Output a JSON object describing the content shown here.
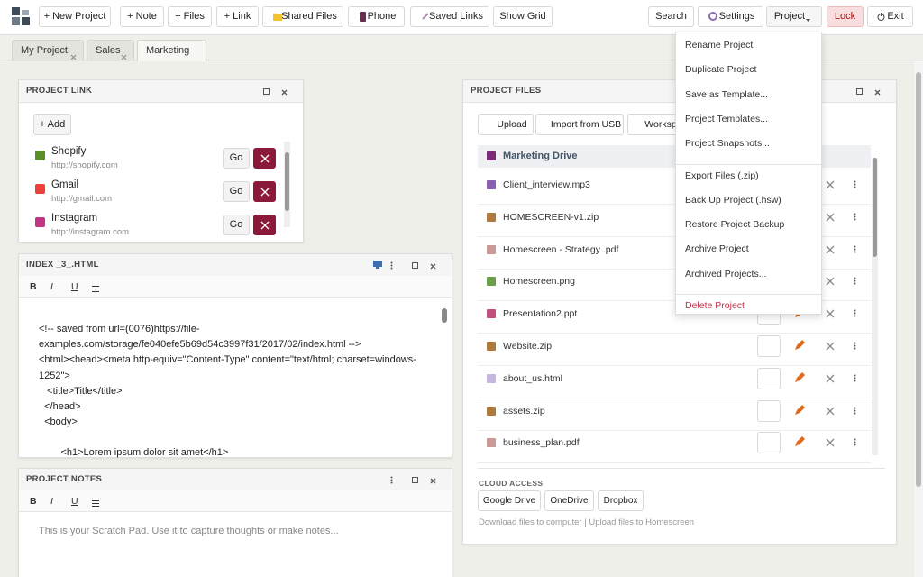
{
  "toolbar": {
    "left": [
      "+ New Project",
      "+ Note",
      "+ Files",
      "+ Link",
      "Shared Files",
      "Phone",
      "Saved Links",
      "Show Grid"
    ],
    "right": [
      "Search",
      "Settings",
      "Project",
      "Lock",
      "Exit"
    ]
  },
  "tabs": [
    "My Project",
    "Sales",
    "Marketing"
  ],
  "project_link": {
    "title": "PROJECT LINK",
    "add": "+ Add",
    "go": "Go",
    "links": [
      {
        "name": "Shopify",
        "url": "http://shopify.com"
      },
      {
        "name": "Gmail",
        "url": "http://gmail.com"
      },
      {
        "name": "Instagram",
        "url": "http://instagram.com"
      }
    ]
  },
  "editor_toolbar": [
    "B",
    "I",
    "U"
  ],
  "index_html": {
    "title": "INDEX _3_.HTML",
    "lines": [
      "<!-- saved from url=(0076)https://file-",
      "examples.com/storage/fe040efe5b69d54c3997f31/2017/02/index.html -->",
      "<html><head><meta http-equiv=\"Content-Type\" content=\"text/html; charset=windows-",
      "1252\">",
      "   <title>Title</title>",
      "  </head>",
      "  <body>",
      "        <h1>Lorem ipsum dolor sit amet</h1>"
    ]
  },
  "project_notes": {
    "title": "PROJECT NOTES",
    "placeholder": "This is your Scratch Pad. Use it to capture thoughts or make notes..."
  },
  "project_files": {
    "title": "PROJECT FILES",
    "buttons": [
      "Upload",
      "Import from USB",
      "Worksp"
    ],
    "drive": "Marketing Drive",
    "files": [
      "Client_interview.mp3",
      "HOMESCREEN-v1.zip",
      "Homescreen - Strategy .pdf",
      "Homescreen.png",
      "Presentation2.ppt",
      "Website.zip",
      "about_us.html",
      "assets.zip",
      "business_plan.pdf"
    ],
    "cloud_title": "CLOUD ACCESS",
    "cloud": [
      "Google Drive",
      "OneDrive",
      "Dropbox"
    ],
    "footer": "Download files to computer | Upload files to Homescreen"
  },
  "project_menu": {
    "groups": [
      [
        "Rename Project",
        "Duplicate Project",
        "Save as Template...",
        "Project Templates...",
        "Project Snapshots..."
      ],
      [
        "Export Files (.zip)",
        "Back Up Project (.hsw)",
        "Restore Project Backup",
        "Archive Project",
        "Archived Projects..."
      ],
      [
        "Delete Project"
      ]
    ]
  }
}
